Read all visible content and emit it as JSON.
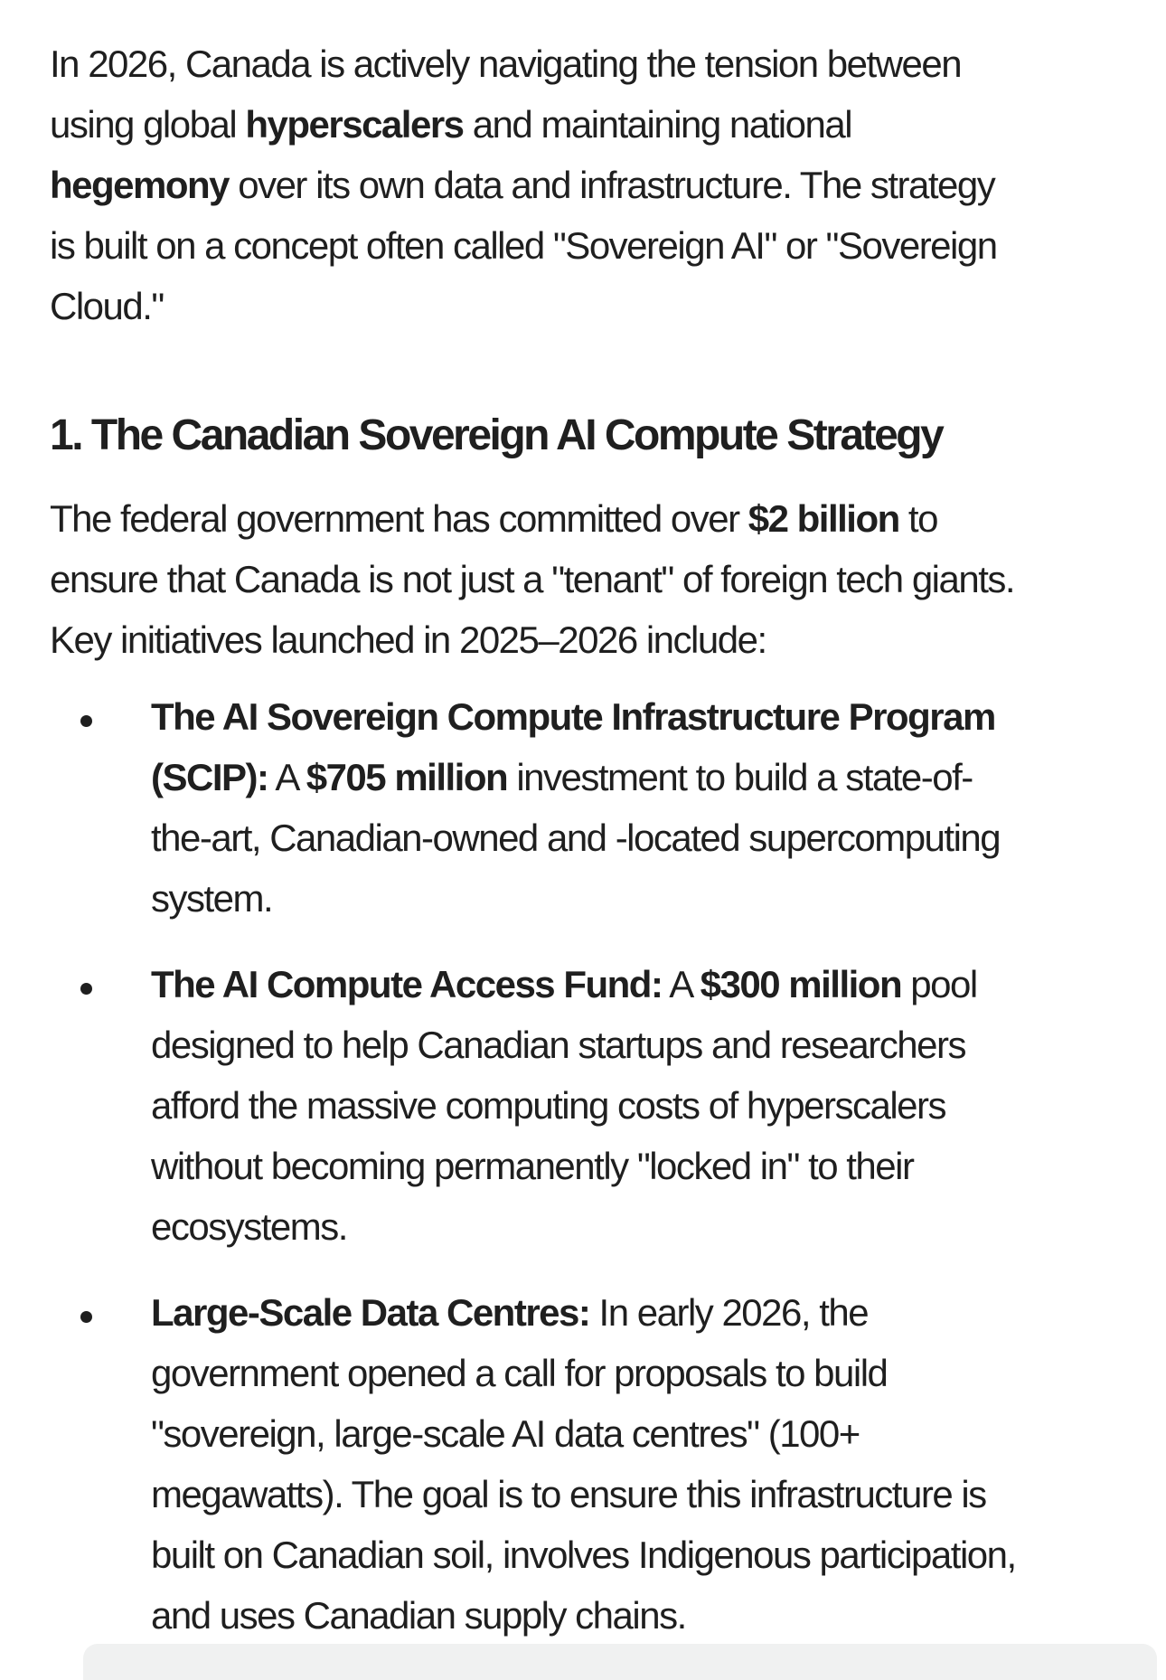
{
  "colors": {
    "background": "#ffffff",
    "text": "#1f1f1f",
    "bullet": "#1f1f1f",
    "partial_element": "#f0f1f1"
  },
  "content": {
    "blocks": [
      {
        "type": "paragraph",
        "lines": [
          {
            "runs": [
              {
                "t": "In 2026, Canada is actively navigating the tension between"
              }
            ]
          },
          {
            "runs": [
              {
                "t": "using global "
              },
              {
                "t": "hyperscalers",
                "b": true
              },
              {
                "t": " and maintaining national"
              }
            ]
          },
          {
            "runs": [
              {
                "t": "hegemony",
                "b": true
              },
              {
                "t": " over its own data and infrastructure. The strategy"
              }
            ]
          },
          {
            "runs": [
              {
                "t": "is built on a concept often called \"Sovereign AI\" or \"Sovereign"
              }
            ]
          },
          {
            "runs": [
              {
                "t": "Cloud.\""
              }
            ]
          }
        ]
      },
      {
        "type": "heading",
        "text": "1. The Canadian Sovereign AI Compute Strategy"
      },
      {
        "type": "paragraph",
        "lines": [
          {
            "runs": [
              {
                "t": "The federal government has committed over "
              },
              {
                "t": "$2 billion",
                "b": true
              },
              {
                "t": " to"
              }
            ]
          },
          {
            "runs": [
              {
                "t": "ensure that Canada is not just a \"tenant\" of foreign tech giants."
              }
            ]
          },
          {
            "runs": [
              {
                "t": "Key initiatives launched in 2025–2026 include:"
              }
            ]
          }
        ]
      },
      {
        "type": "list",
        "items": [
          {
            "lines": [
              {
                "runs": [
                  {
                    "t": "The AI Sovereign Compute Infrastructure Program",
                    "b": true
                  }
                ]
              },
              {
                "runs": [
                  {
                    "t": "(SCIP):",
                    "b": true
                  },
                  {
                    "t": " A "
                  },
                  {
                    "t": "$705 million",
                    "b": true
                  },
                  {
                    "t": " investment to build a state-of-"
                  }
                ]
              },
              {
                "runs": [
                  {
                    "t": "the-art, Canadian-owned and -located supercomputing"
                  }
                ]
              },
              {
                "runs": [
                  {
                    "t": "system."
                  }
                ]
              }
            ]
          },
          {
            "lines": [
              {
                "runs": [
                  {
                    "t": "The AI Compute Access Fund:",
                    "b": true
                  },
                  {
                    "t": " A "
                  },
                  {
                    "t": "$300 million",
                    "b": true
                  },
                  {
                    "t": " pool"
                  }
                ]
              },
              {
                "runs": [
                  {
                    "t": "designed to help Canadian startups and researchers"
                  }
                ]
              },
              {
                "runs": [
                  {
                    "t": "afford the massive computing costs of hyperscalers"
                  }
                ]
              },
              {
                "runs": [
                  {
                    "t": "without becoming permanently \"locked in\" to their"
                  }
                ]
              },
              {
                "runs": [
                  {
                    "t": "ecosystems."
                  }
                ]
              }
            ]
          },
          {
            "lines": [
              {
                "runs": [
                  {
                    "t": "Large-Scale Data Centres:",
                    "b": true
                  },
                  {
                    "t": " In early 2026, the"
                  }
                ]
              },
              {
                "runs": [
                  {
                    "t": "government opened a call for proposals to build"
                  }
                ]
              },
              {
                "runs": [
                  {
                    "t": "\"sovereign, large-scale AI data centres\" (100+"
                  }
                ]
              },
              {
                "runs": [
                  {
                    "t": "megawatts). The goal is to ensure this infrastructure is"
                  }
                ]
              },
              {
                "runs": [
                  {
                    "t": "built on Canadian soil, involves Indigenous participation,"
                  }
                ]
              },
              {
                "runs": [
                  {
                    "t": "and uses Canadian supply chains."
                  }
                ]
              }
            ]
          }
        ]
      }
    ]
  }
}
